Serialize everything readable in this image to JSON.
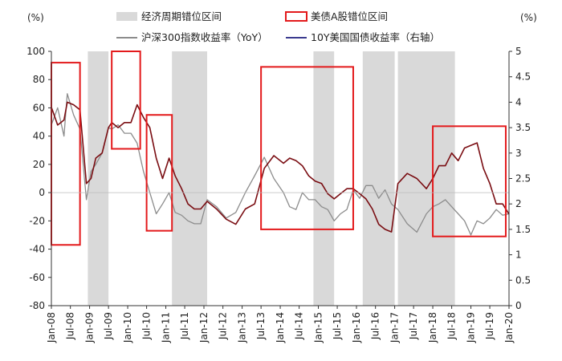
{
  "chart_data": {
    "type": "line",
    "left_unit": "(%)",
    "right_unit": "(%)",
    "left_ylim": [
      -80,
      100
    ],
    "right_ylim": [
      0,
      5
    ],
    "left_ticks": [
      "100",
      "80",
      "60",
      "40",
      "20",
      "0",
      "-20",
      "-40",
      "-60",
      "-80"
    ],
    "right_ticks": [
      "5",
      "4.5",
      "4",
      "3.5",
      "3",
      "2.5",
      "2",
      "1.5",
      "1",
      "0.5",
      "0"
    ],
    "x_tick_labels": [
      "Jan-08",
      "Jul-08",
      "Jan-09",
      "Jul-09",
      "Jan-10",
      "Jul-10",
      "Jan-11",
      "Jul-11",
      "Jan-12",
      "Jul-12",
      "Jan-13",
      "Jul-13",
      "Jan-14",
      "Jul-14",
      "Jan-15",
      "Jul-15",
      "Jan-16",
      "Jul-16",
      "Jan-17",
      "Jul-17",
      "Jan-18",
      "Jul-18",
      "Jan-19",
      "Jul-19",
      "Jan-20"
    ],
    "legend": {
      "shade": "经济周期错位区间",
      "box": "美债A股错位区间",
      "csi": "沪深300指数收益率（YoY）",
      "bond": "10Y美国国债收益率（右轴）"
    },
    "colors": {
      "shade": "#d9d9d9",
      "box": "#e31a1c",
      "csi": "#8c8c8c",
      "bond": "#7a0d12",
      "bond_legend": "#3b3b8f"
    },
    "shaded_ranges": [
      [
        "2008-12-15",
        "2009-07-01"
      ],
      [
        "2011-03-01",
        "2012-02-01"
      ],
      [
        "2014-11-15",
        "2015-06-01"
      ],
      [
        "2016-03-01",
        "2017-01-01"
      ],
      [
        "2017-02-01",
        "2018-08-01"
      ]
    ],
    "boxed_ranges": [
      {
        "start": "2008-01-01",
        "end": "2008-10-01",
        "left_top": 92,
        "left_bottom": -37
      },
      {
        "start": "2009-08-01",
        "end": "2010-05-01",
        "left_top": 100,
        "left_bottom": 31
      },
      {
        "start": "2010-07-01",
        "end": "2011-03-01",
        "left_top": 55,
        "left_bottom": -27
      },
      {
        "start": "2013-07-01",
        "end": "2015-12-01",
        "left_top": 89,
        "left_bottom": -26
      },
      {
        "start": "2018-01-01",
        "end": "2019-12-01",
        "left_top": 47,
        "left_bottom": -31
      }
    ],
    "series": [
      {
        "name": "沪深300指数收益率（YoY）",
        "axis": "left",
        "x": [
          "2008-01-01",
          "2008-03-01",
          "2008-05-01",
          "2008-06-01",
          "2008-08-01",
          "2008-10-01",
          "2008-12-01",
          "2009-01-15",
          "2009-03-01",
          "2009-05-01",
          "2009-07-01",
          "2009-08-01",
          "2009-10-01",
          "2009-12-01",
          "2010-02-01",
          "2010-04-01",
          "2010-06-01",
          "2010-08-01",
          "2010-10-01",
          "2010-12-01",
          "2011-02-01",
          "2011-04-01",
          "2011-06-01",
          "2011-08-01",
          "2011-10-01",
          "2011-12-01",
          "2012-02-01",
          "2012-05-01",
          "2012-08-01",
          "2012-11-01",
          "2013-02-01",
          "2013-05-01",
          "2013-08-01",
          "2013-11-01",
          "2014-02-01",
          "2014-04-01",
          "2014-06-01",
          "2014-08-01",
          "2014-10-01",
          "2014-12-01",
          "2015-02-01",
          "2015-04-01",
          "2015-06-01",
          "2015-08-01",
          "2015-10-01",
          "2015-12-01",
          "2016-02-01",
          "2016-04-01",
          "2016-06-01",
          "2016-08-01",
          "2016-10-01",
          "2016-12-01",
          "2017-02-01",
          "2017-05-01",
          "2017-08-01",
          "2017-11-01",
          "2018-01-01",
          "2018-03-01",
          "2018-05-01",
          "2018-07-01",
          "2018-09-01",
          "2018-11-01",
          "2019-01-01",
          "2019-03-01",
          "2019-05-01",
          "2019-07-01",
          "2019-09-01",
          "2019-11-01",
          "2020-01-01"
        ],
        "values": [
          48,
          60,
          40,
          70,
          55,
          45,
          -5,
          15,
          20,
          28,
          46,
          45,
          48,
          42,
          42,
          35,
          15,
          0,
          -15,
          -8,
          0,
          -14,
          -16,
          -20,
          -22,
          -22,
          -5,
          -10,
          -18,
          -14,
          0,
          12,
          25,
          10,
          0,
          -10,
          -12,
          0,
          -5,
          -5,
          -10,
          -12,
          -20,
          -15,
          -12,
          2,
          -4,
          5,
          5,
          -4,
          2,
          -8,
          -12,
          -22,
          -28,
          -15,
          -10,
          -8,
          -5,
          -10,
          -15,
          -20,
          -30,
          -20,
          -22,
          -18,
          -12,
          -16,
          -15
        ]
      },
      {
        "name": "10Y美国国债收益率（右轴）",
        "axis": "right",
        "x": [
          "2008-01-01",
          "2008-03-01",
          "2008-05-01",
          "2008-06-01",
          "2008-08-01",
          "2008-10-01",
          "2008-12-01",
          "2009-01-15",
          "2009-03-01",
          "2009-05-01",
          "2009-07-01",
          "2009-08-01",
          "2009-10-01",
          "2009-12-01",
          "2010-02-01",
          "2010-04-01",
          "2010-06-01",
          "2010-08-01",
          "2010-10-01",
          "2010-12-01",
          "2011-02-01",
          "2011-04-01",
          "2011-06-01",
          "2011-08-01",
          "2011-10-01",
          "2011-12-01",
          "2012-02-01",
          "2012-05-01",
          "2012-08-01",
          "2012-11-01",
          "2013-02-01",
          "2013-05-01",
          "2013-08-01",
          "2013-11-01",
          "2014-02-01",
          "2014-04-01",
          "2014-06-01",
          "2014-08-01",
          "2014-10-01",
          "2014-12-01",
          "2015-02-01",
          "2015-04-01",
          "2015-06-01",
          "2015-08-01",
          "2015-10-01",
          "2015-12-01",
          "2016-02-01",
          "2016-04-01",
          "2016-06-01",
          "2016-08-01",
          "2016-10-01",
          "2016-12-01",
          "2017-02-01",
          "2017-05-01",
          "2017-08-01",
          "2017-11-01",
          "2018-01-01",
          "2018-03-01",
          "2018-05-01",
          "2018-07-01",
          "2018-09-01",
          "2018-11-01",
          "2019-01-01",
          "2019-03-01",
          "2019-05-01",
          "2019-07-01",
          "2019-09-01",
          "2019-11-01",
          "2020-01-01"
        ],
        "values": [
          3.9,
          3.55,
          3.65,
          4.0,
          3.95,
          3.85,
          2.4,
          2.5,
          2.9,
          3.0,
          3.5,
          3.6,
          3.5,
          3.6,
          3.6,
          3.95,
          3.7,
          3.5,
          2.9,
          2.5,
          2.9,
          2.55,
          2.3,
          2.0,
          1.9,
          1.9,
          2.05,
          1.9,
          1.7,
          1.6,
          1.9,
          2.0,
          2.7,
          2.95,
          2.8,
          2.9,
          2.85,
          2.75,
          2.55,
          2.45,
          2.4,
          2.2,
          2.1,
          2.2,
          2.3,
          2.3,
          2.2,
          2.1,
          1.9,
          1.6,
          1.5,
          1.45,
          2.4,
          2.6,
          2.5,
          2.3,
          2.5,
          2.75,
          2.75,
          3.0,
          2.85,
          3.1,
          3.15,
          3.2,
          2.7,
          2.4,
          2.0,
          2.0,
          1.8
        ]
      }
    ]
  }
}
